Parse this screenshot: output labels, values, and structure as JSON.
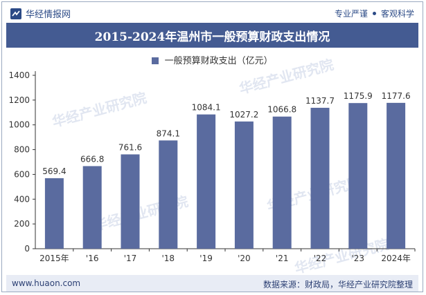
{
  "header": {
    "brand": "华经情报网",
    "tags": [
      "专业严谨",
      "客观科学"
    ]
  },
  "colors": {
    "bar": "#5a6b9f",
    "title_bg": "#445b92",
    "brand": "#2b4a86"
  },
  "footer": {
    "left": "www.huaon.com",
    "right": "数据来源：财政局，华经产业研究院整理"
  },
  "watermark": "华经产业研究院",
  "chart_data": {
    "type": "bar",
    "title": "2015-2024年温州市一般预算财政支出情况",
    "categories": [
      "2015年",
      "'16",
      "'17",
      "'18",
      "'19",
      "'20",
      "'21",
      "'22",
      "'23",
      "2024年"
    ],
    "series": [
      {
        "name": "一般预算财政支出（亿元）",
        "values": [
          569.4,
          666.8,
          761.6,
          874.1,
          1084.1,
          1027.2,
          1066.8,
          1137.7,
          1175.9,
          1177.6
        ]
      }
    ],
    "data_labels": [
      "569.4",
      "666.8",
      "761.6",
      "874.1",
      "1084.1",
      "1027.2",
      "1066.8",
      "1137.7",
      "1175.9",
      "1177.6"
    ],
    "y_ticks": [
      "0",
      "200",
      "400",
      "600",
      "800",
      "1000",
      "1200",
      "1400"
    ],
    "ylim": [
      0,
      1400
    ],
    "grid": false,
    "legend_position": "top-center"
  }
}
